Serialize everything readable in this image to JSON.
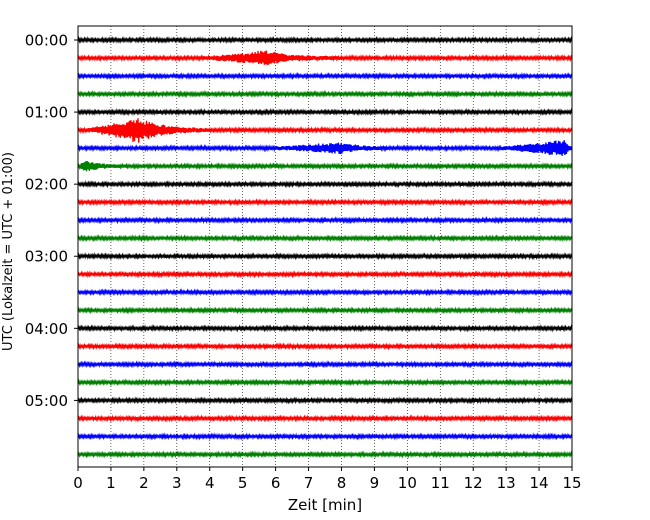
{
  "chart_data": {
    "type": "line",
    "title": "",
    "xlabel": "Zeit  [min]",
    "ylabel": "UTC (Lokalzeit = UTC + 01:00)",
    "xlim": [
      0,
      15
    ],
    "x_ticks": [
      "0",
      "1",
      "2",
      "3",
      "4",
      "5",
      "6",
      "7",
      "8",
      "9",
      "10",
      "11",
      "12",
      "13",
      "14",
      "15"
    ],
    "y_tick_labels": [
      "00:00",
      "01:00",
      "02:00",
      "03:00",
      "04:00",
      "05:00"
    ],
    "grid": "vertical dotted",
    "trace_interval_minutes": 15,
    "trace_count": 24,
    "trace_colors": [
      "#000000",
      "#ff0000",
      "#0000ff",
      "#008000"
    ],
    "events": [
      {
        "trace": 1,
        "start_min": 3.5,
        "peak_min": 5.7,
        "end_min": 8.0,
        "peak_amplitude": 0.55
      },
      {
        "trace": 5,
        "start_min": 0.0,
        "peak_min": 1.8,
        "end_min": 4.0,
        "peak_amplitude": 1.0
      },
      {
        "trace": 6,
        "start_min": 5.5,
        "peak_min": 8.0,
        "end_min": 9.5,
        "peak_amplitude": 0.4
      },
      {
        "trace": 6,
        "start_min": 12.5,
        "peak_min": 14.8,
        "end_min": 15.0,
        "peak_amplitude": 0.65
      },
      {
        "trace": 7,
        "start_min": 0.0,
        "peak_min": 0.2,
        "end_min": 1.5,
        "peak_amplitude": 0.4
      }
    ]
  }
}
